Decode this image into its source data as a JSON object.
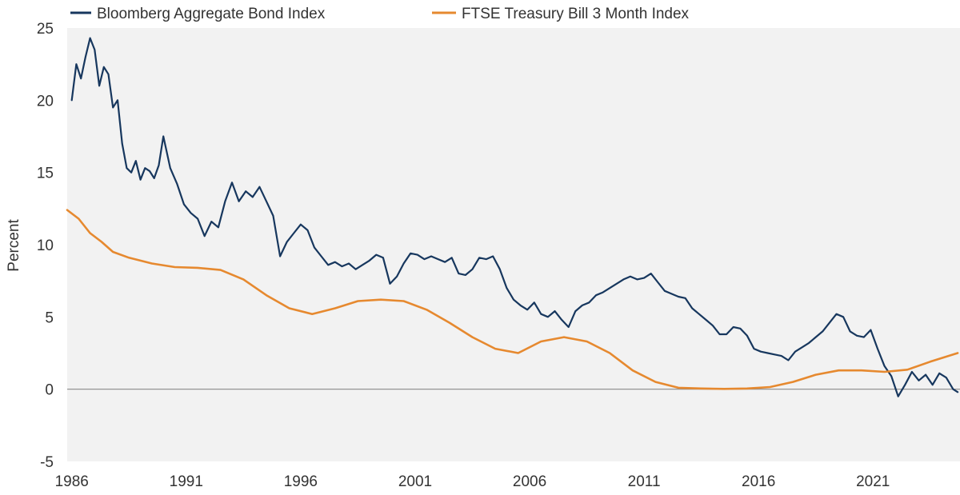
{
  "chart_data": {
    "type": "line",
    "title": "",
    "xlabel": "",
    "ylabel": "Percent",
    "xlim": [
      1985.8,
      2024.8
    ],
    "ylim": [
      -5,
      25
    ],
    "x_ticks": [
      "1986",
      "1991",
      "1996",
      "2001",
      "2006",
      "2011",
      "2016",
      "2021"
    ],
    "y_ticks": [
      "25",
      "20",
      "15",
      "10",
      "5",
      "0",
      "-5"
    ],
    "zero_line": true,
    "grid": false,
    "legend_position": "top",
    "series": [
      {
        "name": "Bloomberg Aggregate Bond Index",
        "color": "#17375e",
        "x": [
          1986.0,
          1986.2,
          1986.4,
          1986.6,
          1986.8,
          1987.0,
          1987.2,
          1987.4,
          1987.6,
          1987.8,
          1988.0,
          1988.2,
          1988.4,
          1988.6,
          1988.8,
          1989.0,
          1989.2,
          1989.4,
          1989.6,
          1989.8,
          1990.0,
          1990.3,
          1990.6,
          1990.9,
          1991.2,
          1991.5,
          1991.8,
          1992.1,
          1992.4,
          1992.7,
          1993.0,
          1993.3,
          1993.6,
          1993.9,
          1994.2,
          1994.5,
          1994.8,
          1995.1,
          1995.4,
          1995.7,
          1996.0,
          1996.3,
          1996.6,
          1996.9,
          1997.2,
          1997.5,
          1997.8,
          1998.1,
          1998.4,
          1998.7,
          1999.0,
          1999.3,
          1999.6,
          1999.9,
          2000.2,
          2000.5,
          2000.8,
          2001.1,
          2001.4,
          2001.7,
          2002.0,
          2002.3,
          2002.6,
          2002.9,
          2003.2,
          2003.5,
          2003.8,
          2004.1,
          2004.4,
          2004.7,
          2005.0,
          2005.3,
          2005.6,
          2005.9,
          2006.2,
          2006.5,
          2006.8,
          2007.1,
          2007.4,
          2007.7,
          2008.0,
          2008.3,
          2008.6,
          2008.9,
          2009.2,
          2009.5,
          2009.8,
          2010.1,
          2010.4,
          2010.7,
          2011.0,
          2011.3,
          2011.6,
          2011.9,
          2012.2,
          2012.5,
          2012.8,
          2013.1,
          2013.4,
          2013.7,
          2014.0,
          2014.3,
          2014.6,
          2014.9,
          2015.2,
          2015.5,
          2015.8,
          2016.1,
          2016.4,
          2016.7,
          2017.0,
          2017.3,
          2017.6,
          2017.9,
          2018.2,
          2018.5,
          2018.8,
          2019.1,
          2019.4,
          2019.7,
          2020.0,
          2020.3,
          2020.6,
          2020.9,
          2021.2,
          2021.5,
          2021.8,
          2022.1,
          2022.4,
          2022.7,
          2023.0,
          2023.3,
          2023.6,
          2023.9,
          2024.2,
          2024.5,
          2024.7
        ],
        "values": [
          20.0,
          22.5,
          21.5,
          23.0,
          24.3,
          23.5,
          21.0,
          22.3,
          21.8,
          19.5,
          20.0,
          17.0,
          15.3,
          15.0,
          15.8,
          14.5,
          15.3,
          15.1,
          14.6,
          15.5,
          17.5,
          15.3,
          14.2,
          12.8,
          12.2,
          11.8,
          10.6,
          11.6,
          11.2,
          13.0,
          14.3,
          13.0,
          13.7,
          13.3,
          14.0,
          13.0,
          12.0,
          9.2,
          10.2,
          10.8,
          11.4,
          11.0,
          9.8,
          9.2,
          8.6,
          8.8,
          8.5,
          8.7,
          8.3,
          8.6,
          8.9,
          9.3,
          9.1,
          7.3,
          7.8,
          8.7,
          9.4,
          9.3,
          9.0,
          9.2,
          9.0,
          8.8,
          9.1,
          8.0,
          7.9,
          8.3,
          9.1,
          9.0,
          9.2,
          8.3,
          7.0,
          6.2,
          5.8,
          5.5,
          6.0,
          5.2,
          5.0,
          5.4,
          4.8,
          4.3,
          5.4,
          5.8,
          6.0,
          6.5,
          6.7,
          7.0,
          7.3,
          7.6,
          7.8,
          7.6,
          7.7,
          8.0,
          7.4,
          6.8,
          6.6,
          6.4,
          6.3,
          5.6,
          5.2,
          4.8,
          4.4,
          3.8,
          3.8,
          4.3,
          4.2,
          3.7,
          2.8,
          2.6,
          2.5,
          2.4,
          2.3,
          2.0,
          2.6,
          2.9,
          3.2,
          3.6,
          4.0,
          4.6,
          5.2,
          5.0,
          4.0,
          3.7,
          3.6,
          4.1,
          2.8,
          1.6,
          0.9,
          -0.5,
          0.3,
          1.2,
          0.6,
          1.0,
          0.3,
          1.1,
          0.8,
          0.0,
          -0.2
        ]
      },
      {
        "name": "FTSE Treasury Bill 3 Month Index",
        "color": "#e6892f",
        "x": [
          1985.8,
          1986.3,
          1986.8,
          1987.3,
          1987.8,
          1988.5,
          1989.5,
          1990.5,
          1991.5,
          1992.5,
          1993.5,
          1994.5,
          1995.5,
          1996.5,
          1997.5,
          1998.5,
          1999.5,
          2000.5,
          2001.5,
          2002.5,
          2003.5,
          2004.5,
          2005.5,
          2006.5,
          2007.5,
          2008.5,
          2009.5,
          2010.5,
          2011.5,
          2012.5,
          2013.5,
          2014.5,
          2015.5,
          2016.5,
          2017.5,
          2018.5,
          2019.5,
          2020.5,
          2021.5,
          2022.5,
          2023.5,
          2024.7
        ],
        "values": [
          12.4,
          11.8,
          10.8,
          10.2,
          9.5,
          9.1,
          8.7,
          8.45,
          8.4,
          8.25,
          7.6,
          6.5,
          5.6,
          5.2,
          5.6,
          6.1,
          6.2,
          6.1,
          5.5,
          4.6,
          3.6,
          2.8,
          2.5,
          3.3,
          3.6,
          3.3,
          2.5,
          1.3,
          0.5,
          0.1,
          0.05,
          0.02,
          0.05,
          0.15,
          0.5,
          1.0,
          1.3,
          1.3,
          1.2,
          1.35,
          1.9,
          2.5
        ]
      }
    ]
  }
}
